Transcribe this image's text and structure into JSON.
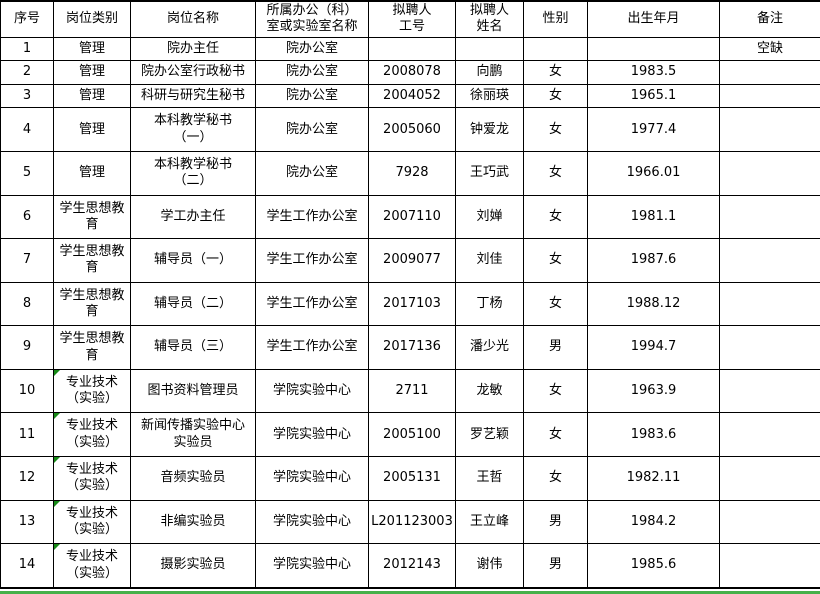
{
  "table": {
    "columns": [
      "序号",
      "岗位类别",
      "岗位名称",
      "所属办公（科）\n室或实验室名称",
      "拟聘人\n工号",
      "拟聘人\n姓名",
      "性别",
      "出生年月",
      "备注"
    ],
    "rows": [
      {
        "cells": [
          "1",
          "管理",
          "院办主任",
          "院办公室",
          "",
          "",
          "",
          "",
          "空缺"
        ],
        "note_marker": false
      },
      {
        "cells": [
          "2",
          "管理",
          "院办公室行政秘书",
          "院办公室",
          "2008078",
          "向鹏",
          "女",
          "1983.5",
          ""
        ],
        "note_marker": false
      },
      {
        "cells": [
          "3",
          "管理",
          "科研与研究生秘书",
          "院办公室",
          "2004052",
          "徐丽瑛",
          "女",
          "1965.1",
          ""
        ],
        "note_marker": false
      },
      {
        "cells": [
          "4",
          "管理",
          "本科教学秘书\n（一）",
          "院办公室",
          "2005060",
          "钟爱龙",
          "女",
          "1977.4",
          ""
        ],
        "note_marker": false
      },
      {
        "cells": [
          "5",
          "管理",
          "本科教学秘书\n（二）",
          "院办公室",
          "7928",
          "王巧武",
          "女",
          "1966.01",
          ""
        ],
        "note_marker": false
      },
      {
        "cells": [
          "6",
          "学生思想教\n育",
          "学工办主任",
          "学生工作办公室",
          "2007110",
          "刘婵",
          "女",
          "1981.1",
          ""
        ],
        "note_marker": false
      },
      {
        "cells": [
          "7",
          "学生思想教\n育",
          "辅导员（一）",
          "学生工作办公室",
          "2009077",
          "刘佳",
          "女",
          "1987.6",
          ""
        ],
        "note_marker": false
      },
      {
        "cells": [
          "8",
          "学生思想教\n育",
          "辅导员（二）",
          "学生工作办公室",
          "2017103",
          "丁杨",
          "女",
          "1988.12",
          ""
        ],
        "note_marker": false
      },
      {
        "cells": [
          "9",
          "学生思想教\n育",
          "辅导员（三）",
          "学生工作办公室",
          "2017136",
          "潘少光",
          "男",
          "1994.7",
          ""
        ],
        "note_marker": false
      },
      {
        "cells": [
          "10",
          "专业技术\n（实验）",
          "图书资料管理员",
          "学院实验中心",
          "2711",
          "龙敏",
          "女",
          "1963.9",
          ""
        ],
        "note_marker": true
      },
      {
        "cells": [
          "11",
          "专业技术\n（实验）",
          "新闻传播实验中心\n实验员",
          "学院实验中心",
          "2005100",
          "罗艺颖",
          "女",
          "1983.6",
          ""
        ],
        "note_marker": true
      },
      {
        "cells": [
          "12",
          "专业技术\n（实验）",
          "音频实验员",
          "学院实验中心",
          "2005131",
          "王哲",
          "女",
          "1982.11",
          ""
        ],
        "note_marker": true
      },
      {
        "cells": [
          "13",
          "专业技术\n（实验）",
          "非编实验员",
          "学院实验中心",
          "L201123003",
          "王立峰",
          "男",
          "1984.2",
          ""
        ],
        "note_marker": true
      },
      {
        "cells": [
          "14",
          "专业技术\n（实验）",
          "摄影实验员",
          "学院实验中心",
          "2012143",
          "谢伟",
          "男",
          "1985.6",
          ""
        ],
        "note_marker": true
      }
    ]
  },
  "colors": {
    "border": "#000000",
    "note_marker_green": "#168a16",
    "sheet_edge_green": "#46b049"
  }
}
